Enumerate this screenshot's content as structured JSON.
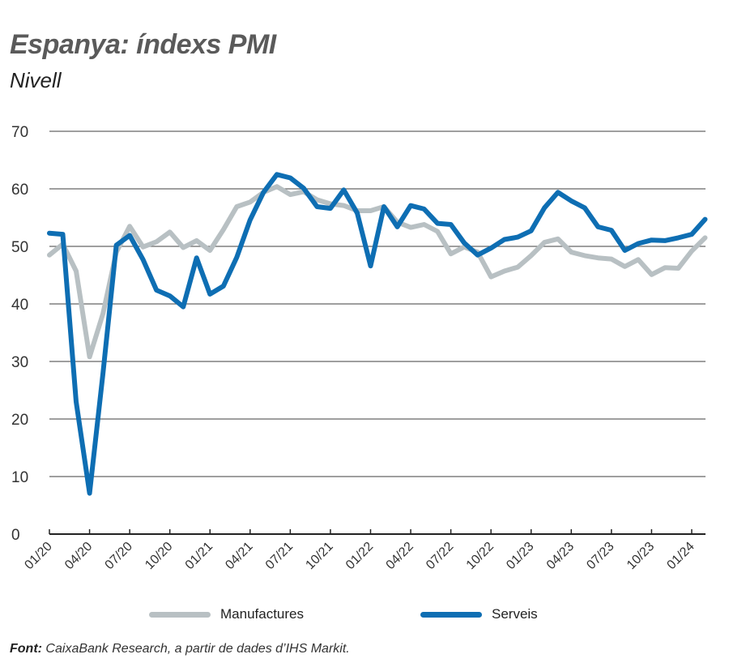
{
  "colors": {
    "manufactures": "#b8c0c3",
    "serveis": "#0e6eb3",
    "grid": "#666666",
    "axis": "#222222",
    "title": "#5a5a5a"
  },
  "chart_data": {
    "type": "line",
    "title": "Espanya: índexs PMI",
    "subtitle": "Nivell",
    "xlabel": "",
    "ylabel": "",
    "ylim": [
      0,
      70
    ],
    "yticks": [
      "0",
      "10",
      "20",
      "30",
      "40",
      "50",
      "60",
      "70"
    ],
    "ytick_values": [
      0,
      10,
      20,
      30,
      40,
      50,
      60,
      70
    ],
    "xtick_labels": [
      "01/20",
      "04/20",
      "07/20",
      "10/20",
      "01/21",
      "04/21",
      "07/21",
      "10/21",
      "01/22",
      "04/22",
      "07/22",
      "10/22",
      "01/23",
      "04/23",
      "07/23",
      "10/23",
      "01/24"
    ],
    "x_start": "01/20",
    "x_end": "02/24",
    "grid": true,
    "legend_position": "bottom",
    "series": [
      {
        "name": "Manufactures",
        "color": "#b8c0c3",
        "values": [
          48.5,
          50.4,
          45.7,
          30.8,
          38.3,
          49.0,
          53.5,
          49.9,
          50.8,
          52.5,
          49.8,
          51.0,
          49.3,
          52.9,
          56.9,
          57.7,
          59.4,
          60.4,
          59.0,
          59.5,
          58.1,
          57.4,
          57.1,
          56.2,
          56.2,
          56.9,
          54.2,
          53.3,
          53.8,
          52.6,
          48.7,
          49.9,
          49.0,
          44.7,
          45.7,
          46.4,
          48.4,
          50.7,
          51.3,
          49.0,
          48.4,
          48.0,
          47.8,
          46.5,
          47.7,
          45.1,
          46.3,
          46.2,
          49.2,
          51.5
        ]
      },
      {
        "name": "Serveis",
        "color": "#0e6eb3",
        "values": [
          52.3,
          52.1,
          23.0,
          7.1,
          27.9,
          50.2,
          51.9,
          47.7,
          42.4,
          41.4,
          39.5,
          48.0,
          41.7,
          43.1,
          48.1,
          54.6,
          59.4,
          62.5,
          61.9,
          60.1,
          56.9,
          56.6,
          59.8,
          55.8,
          46.6,
          56.9,
          53.4,
          57.1,
          56.5,
          54.0,
          53.8,
          50.6,
          48.5,
          49.7,
          51.2,
          51.6,
          52.7,
          56.7,
          59.4,
          57.9,
          56.7,
          53.4,
          52.8,
          49.3,
          50.5,
          51.1,
          51.0,
          51.5,
          52.1,
          54.7
        ]
      }
    ]
  },
  "legend": {
    "items": [
      "Manufactures",
      "Serveis"
    ]
  },
  "source": {
    "label": "Font:",
    "text": " CaixaBank Research, a partir de dades d’IHS Markit."
  }
}
